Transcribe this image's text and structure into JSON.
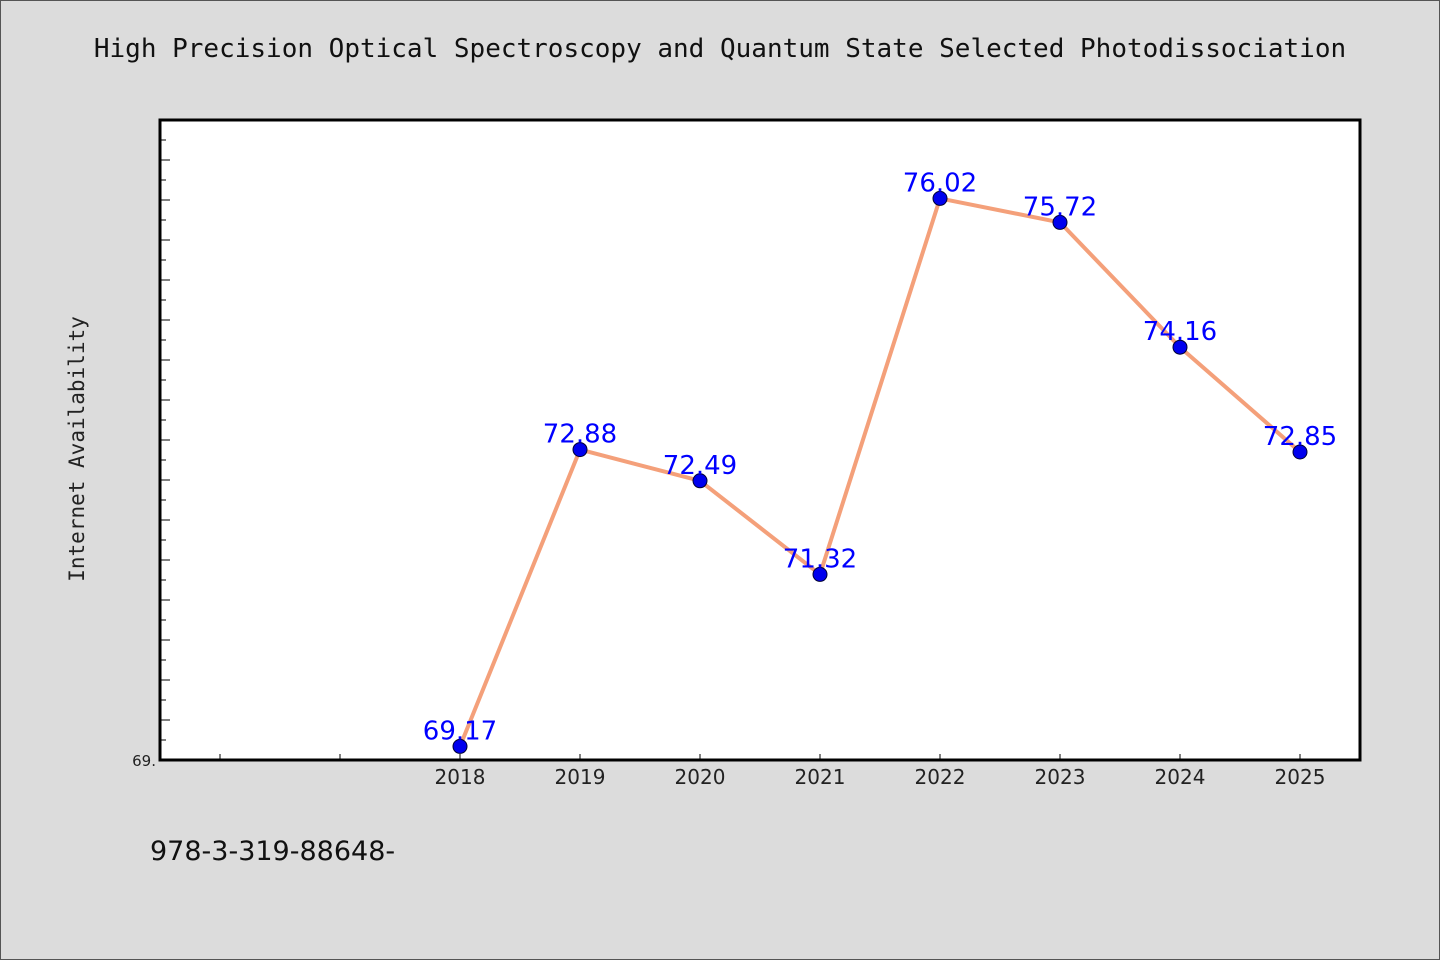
{
  "chart_data": {
    "type": "line",
    "title": "High Precision Optical Spectroscopy and Quantum State Selected Photodissociation",
    "xlabel": "",
    "ylabel": "Internet Availability",
    "x": [
      "2018",
      "2019",
      "2020",
      "2021",
      "2022",
      "2023",
      "2024",
      "2025"
    ],
    "series": [
      {
        "values": [
          69.17,
          72.88,
          72.49,
          71.32,
          76.02,
          75.72,
          74.16,
          72.85
        ]
      }
    ],
    "data_labels": [
      "69.17",
      "72.88",
      "72.49",
      "71.32",
      "76.02",
      "75.72",
      "74.16",
      "72.85"
    ],
    "x_extra_ticks": 2,
    "ylim": [
      69.0,
      77.0
    ],
    "y_tick_label": "69.",
    "grid": false,
    "legend": "none",
    "colors": {
      "line": "#f4a07a",
      "marker": "#0000ee",
      "label": "#0000ff",
      "background": "#dcdcdc",
      "plot_bg": "#ffffff"
    }
  },
  "footer": {
    "code": "978-3-319-88648-"
  }
}
